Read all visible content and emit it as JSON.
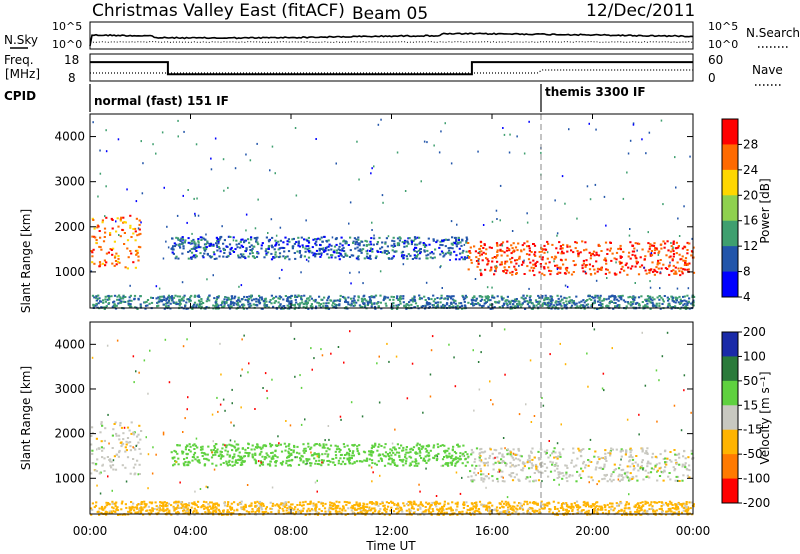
{
  "header": {
    "title": "Christmas Valley East (fitACF)",
    "beam": "Beam 05",
    "date": "12/Dec/2011"
  },
  "noise_panel": {
    "left_label": "N.Sky",
    "right_label": "N.Search",
    "left_ticks": [
      "10^5",
      "10^0"
    ],
    "right_ticks": [
      "10^5",
      "10^0"
    ]
  },
  "freq_panel": {
    "left_label_1": "Freq.",
    "left_label_2": "[MHz]",
    "right_label": "Nave",
    "left_ticks": [
      "18",
      "8"
    ],
    "right_ticks": [
      "60",
      "0"
    ]
  },
  "cpid_panel": {
    "label": "CPID",
    "mode_1": "normal (fast) 151 IF",
    "mode_2": "themis 3300 IF"
  },
  "colorbars": {
    "power": {
      "title": "Power [dB]",
      "ticks": [
        "28",
        "24",
        "20",
        "16",
        "12",
        "8",
        "4"
      ],
      "colors": [
        "#ff0000",
        "#ff6a00",
        "#ffd700",
        "#8fd14f",
        "#3f9f6f",
        "#2255aa",
        "#0000ff"
      ]
    },
    "velocity": {
      "title": "Velocity [m s⁻¹]",
      "ticks": [
        "200",
        "100",
        "50",
        "15",
        "-15",
        "-50",
        "-100",
        "-200"
      ],
      "colors": [
        "#1a2aa8",
        "#2a7a3a",
        "#5fd13f",
        "#c8c8c0",
        "#ffb400",
        "#ff7a00",
        "#ff0000"
      ]
    }
  },
  "chart_data": [
    {
      "type": "line",
      "title": "Christmas Valley East (fitACF)",
      "series": [
        {
          "name": "N.Sky"
        },
        {
          "name": "N.Search"
        }
      ],
      "ylim": [
        1,
        100000
      ],
      "yscale": "log"
    },
    {
      "type": "line",
      "series": [
        {
          "name": "Freq.",
          "x": [
            "00:00",
            "03:06",
            "03:06",
            "15:12",
            "15:12",
            "24:00"
          ],
          "values": [
            15,
            15,
            10.5,
            10.5,
            15,
            15
          ]
        },
        {
          "name": "Nave"
        }
      ],
      "ylabel": "[MHz]",
      "ylim": [
        8,
        18
      ]
    },
    {
      "type": "heatmap",
      "xlabel": "Time UT",
      "ylabel": "Slant Range [km]",
      "x_ticks": [
        "00:00",
        "04:00",
        "08:00",
        "12:00",
        "16:00",
        "20:00",
        "00:00"
      ],
      "y_ticks": [
        1000,
        2000,
        3000,
        4000
      ],
      "ylim": [
        200,
        4500
      ],
      "colorbar": "Power [dB]",
      "colorbar_ticks": [
        4,
        8,
        12,
        16,
        20,
        24,
        28
      ],
      "regions": [
        {
          "t": [
            0.0,
            2.0
          ],
          "r": [
            1100,
            2300
          ],
          "level": 24
        },
        {
          "t": [
            3.2,
            15.0
          ],
          "r": [
            1300,
            1800
          ],
          "level": 8
        },
        {
          "t": [
            15.0,
            24.0
          ],
          "r": [
            950,
            1700
          ],
          "level": 26
        },
        {
          "t": [
            0.0,
            24.0
          ],
          "r": [
            200,
            500
          ],
          "level": 10
        }
      ]
    },
    {
      "type": "heatmap",
      "xlabel": "Time UT",
      "ylabel": "Slant Range [km]",
      "x_ticks": [
        "00:00",
        "04:00",
        "08:00",
        "12:00",
        "16:00",
        "20:00",
        "00:00"
      ],
      "y_ticks": [
        1000,
        2000,
        3000,
        4000
      ],
      "ylim": [
        200,
        4500
      ],
      "colorbar": "Velocity [m s⁻¹]",
      "colorbar_ticks": [
        200,
        100,
        50,
        15,
        -15,
        -50,
        -100,
        -200
      ],
      "regions": [
        {
          "t": [
            0.0,
            2.0
          ],
          "r": [
            1100,
            2300
          ],
          "level": 0
        },
        {
          "t": [
            3.2,
            15.0
          ],
          "r": [
            1300,
            1800
          ],
          "level": 40
        },
        {
          "t": [
            15.0,
            24.0
          ],
          "r": [
            950,
            1700
          ],
          "level": 0
        },
        {
          "t": [
            0.0,
            24.0
          ],
          "r": [
            200,
            500
          ],
          "level": -30
        }
      ]
    }
  ],
  "axis": {
    "x_ticks": [
      "00:00",
      "04:00",
      "08:00",
      "12:00",
      "16:00",
      "20:00",
      "00:00"
    ],
    "xlabel": "Time UT",
    "ylabel": "Slant Range [km]",
    "y_ticks": [
      "1000",
      "2000",
      "3000",
      "4000"
    ]
  }
}
